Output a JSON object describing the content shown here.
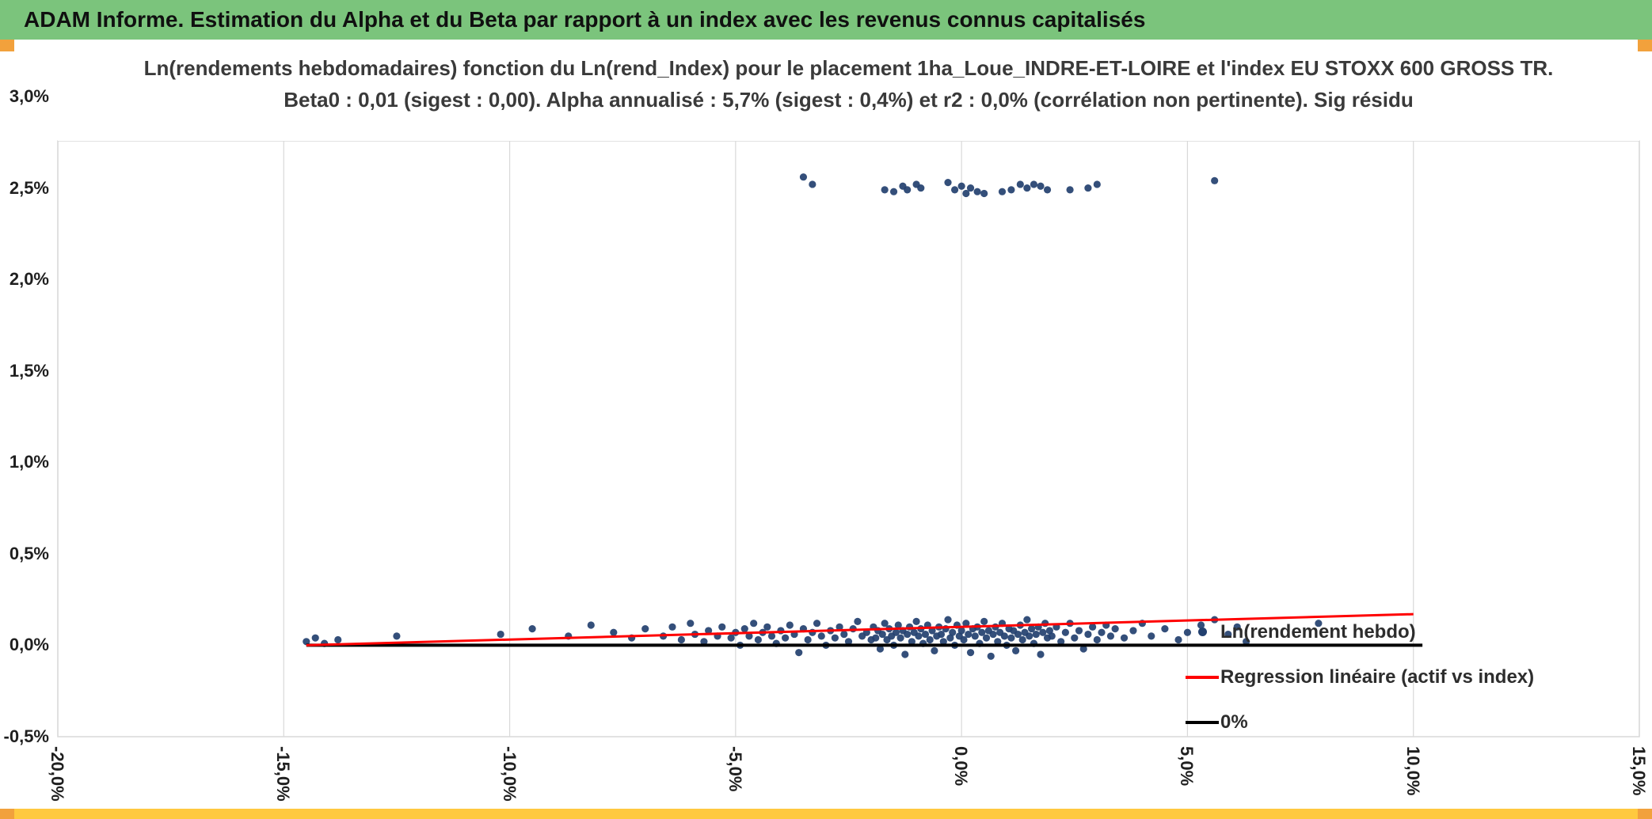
{
  "header": {
    "title": "ADAM Informe. Estimation du Alpha et du Beta par rapport à un index avec les revenus connus capitalisés",
    "bg_color": "#7BC47C"
  },
  "accents": {
    "corner_color": "#F2A13C",
    "bottom_bar_color": "#FFC93F"
  },
  "chart_data": {
    "type": "scatter",
    "title_line1": "Ln(rendements hebdomadaires) fonction du Ln(rend_Index) pour le placement 1ha_Loue_INDRE-ET-LOIRE et l'index EU STOXX 600 GROSS TR.",
    "title_line2": "Beta0 : 0,01 (sigest : 0,00). Alpha annualisé : 5,7% (sigest : 0,4%) et r2 : 0,0% (corrélation non pertinente). Sig résidu",
    "grid": true,
    "grid_color": "#D9D9D9",
    "legend_position": "inside-right",
    "x_axis": {
      "min": -20,
      "max": 15,
      "tick_step": 5,
      "tick_values": [
        -20,
        -15,
        -10,
        -5,
        0,
        5,
        10,
        15
      ],
      "tick_labels": [
        "-20,0%",
        "-15,0%",
        "-10,0%",
        "-5,0%",
        "0,0%",
        "5,0%",
        "10,0%",
        "15,0%"
      ]
    },
    "y_axis": {
      "min": -0.5,
      "max": 3.0,
      "tick_step": 0.5,
      "tick_values": [
        3.0,
        2.5,
        2.0,
        1.5,
        1.0,
        0.5,
        0.0,
        -0.5
      ],
      "tick_labels": [
        "3,0%",
        "2,5%",
        "2,0%",
        "1,5%",
        "1,0%",
        "0,5%",
        "0,0%",
        "-0,5%"
      ]
    },
    "series": [
      {
        "name": "Ln(rendement hebdo)",
        "type": "scatter",
        "color": "#23406F",
        "points": [
          [
            -14.5,
            0.02
          ],
          [
            -14.3,
            0.04
          ],
          [
            -14.1,
            0.01
          ],
          [
            -13.8,
            0.03
          ],
          [
            -12.5,
            0.05
          ],
          [
            -10.2,
            0.06
          ],
          [
            -9.5,
            0.09
          ],
          [
            -8.7,
            0.05
          ],
          [
            -8.2,
            0.11
          ],
          [
            -7.7,
            0.07
          ],
          [
            -7.3,
            0.04
          ],
          [
            -7.0,
            0.09
          ],
          [
            -6.6,
            0.05
          ],
          [
            -6.4,
            0.1
          ],
          [
            -6.2,
            0.03
          ],
          [
            -6.0,
            0.12
          ],
          [
            -5.9,
            0.06
          ],
          [
            -5.7,
            0.02
          ],
          [
            -5.6,
            0.08
          ],
          [
            -5.4,
            0.05
          ],
          [
            -5.3,
            0.1
          ],
          [
            -5.1,
            0.04
          ],
          [
            -5.0,
            0.07
          ],
          [
            -4.9,
            0.0
          ],
          [
            -4.8,
            0.09
          ],
          [
            -4.7,
            0.05
          ],
          [
            -4.6,
            0.12
          ],
          [
            -4.5,
            0.03
          ],
          [
            -4.4,
            0.07
          ],
          [
            -4.3,
            0.1
          ],
          [
            -4.2,
            0.05
          ],
          [
            -4.1,
            0.01
          ],
          [
            -4.0,
            0.08
          ],
          [
            -3.9,
            0.04
          ],
          [
            -3.8,
            0.11
          ],
          [
            -3.7,
            0.06
          ],
          [
            -3.6,
            -0.04
          ],
          [
            -3.5,
            0.09
          ],
          [
            -3.4,
            0.03
          ],
          [
            -3.3,
            0.07
          ],
          [
            -3.2,
            0.12
          ],
          [
            -3.1,
            0.05
          ],
          [
            -3.0,
            0.0
          ],
          [
            -2.9,
            0.08
          ],
          [
            -2.8,
            0.04
          ],
          [
            -2.7,
            0.1
          ],
          [
            -2.6,
            0.06
          ],
          [
            -2.5,
            0.02
          ],
          [
            -2.4,
            0.09
          ],
          [
            -2.3,
            0.13
          ],
          [
            -2.2,
            0.05
          ],
          [
            -2.1,
            0.07
          ],
          [
            -2.0,
            0.03
          ],
          [
            -1.95,
            0.1
          ],
          [
            -1.9,
            0.04
          ],
          [
            -1.85,
            0.08
          ],
          [
            -1.8,
            -0.02
          ],
          [
            -1.75,
            0.06
          ],
          [
            -1.7,
            0.12
          ],
          [
            -1.65,
            0.03
          ],
          [
            -1.6,
            0.09
          ],
          [
            -1.55,
            0.05
          ],
          [
            -1.5,
            0.0
          ],
          [
            -1.45,
            0.07
          ],
          [
            -1.4,
            0.11
          ],
          [
            -1.35,
            0.04
          ],
          [
            -1.3,
            0.08
          ],
          [
            -1.25,
            -0.05
          ],
          [
            -1.2,
            0.06
          ],
          [
            -1.15,
            0.1
          ],
          [
            -1.1,
            0.02
          ],
          [
            -1.05,
            0.07
          ],
          [
            -1.0,
            0.13
          ],
          [
            -0.95,
            0.05
          ],
          [
            -0.9,
            0.09
          ],
          [
            -0.85,
            0.01
          ],
          [
            -0.8,
            0.06
          ],
          [
            -0.75,
            0.11
          ],
          [
            -0.7,
            0.03
          ],
          [
            -0.65,
            0.08
          ],
          [
            -0.6,
            -0.03
          ],
          [
            -0.55,
            0.05
          ],
          [
            -0.5,
            0.1
          ],
          [
            -0.45,
            0.06
          ],
          [
            -0.4,
            0.02
          ],
          [
            -0.35,
            0.09
          ],
          [
            -0.3,
            0.14
          ],
          [
            -0.25,
            0.04
          ],
          [
            -0.2,
            0.07
          ],
          [
            -0.15,
            0.0
          ],
          [
            -0.1,
            0.11
          ],
          [
            -0.05,
            0.05
          ],
          [
            0.0,
            0.08
          ],
          [
            0.05,
            0.03
          ],
          [
            0.1,
            0.12
          ],
          [
            0.15,
            0.06
          ],
          [
            0.2,
            -0.04
          ],
          [
            0.25,
            0.09
          ],
          [
            0.3,
            0.05
          ],
          [
            0.35,
            0.1
          ],
          [
            0.4,
            0.01
          ],
          [
            0.45,
            0.07
          ],
          [
            0.5,
            0.13
          ],
          [
            0.55,
            0.04
          ],
          [
            0.6,
            0.08
          ],
          [
            0.65,
            -0.06
          ],
          [
            0.7,
            0.06
          ],
          [
            0.75,
            0.1
          ],
          [
            0.8,
            0.02
          ],
          [
            0.85,
            0.07
          ],
          [
            0.9,
            0.12
          ],
          [
            0.95,
            0.05
          ],
          [
            1.0,
            0.0
          ],
          [
            1.05,
            0.09
          ],
          [
            1.1,
            0.04
          ],
          [
            1.15,
            0.08
          ],
          [
            1.2,
            -0.03
          ],
          [
            1.25,
            0.06
          ],
          [
            1.3,
            0.11
          ],
          [
            1.35,
            0.03
          ],
          [
            1.4,
            0.07
          ],
          [
            1.45,
            0.14
          ],
          [
            1.5,
            0.05
          ],
          [
            1.55,
            0.09
          ],
          [
            1.6,
            0.01
          ],
          [
            1.65,
            0.06
          ],
          [
            1.7,
            0.1
          ],
          [
            1.75,
            -0.05
          ],
          [
            1.8,
            0.07
          ],
          [
            1.85,
            0.12
          ],
          [
            1.9,
            0.04
          ],
          [
            1.95,
            0.08
          ],
          [
            2.0,
            0.05
          ],
          [
            2.1,
            0.1
          ],
          [
            2.2,
            0.02
          ],
          [
            2.3,
            0.07
          ],
          [
            2.4,
            0.12
          ],
          [
            2.5,
            0.04
          ],
          [
            2.6,
            0.08
          ],
          [
            2.7,
            -0.02
          ],
          [
            2.8,
            0.06
          ],
          [
            2.9,
            0.1
          ],
          [
            3.0,
            0.03
          ],
          [
            3.1,
            0.07
          ],
          [
            3.2,
            0.11
          ],
          [
            3.3,
            0.05
          ],
          [
            3.4,
            0.09
          ],
          [
            3.6,
            0.04
          ],
          [
            3.8,
            0.08
          ],
          [
            4.0,
            0.12
          ],
          [
            4.2,
            0.05
          ],
          [
            4.5,
            0.09
          ],
          [
            4.8,
            0.03
          ],
          [
            5.0,
            0.07
          ],
          [
            5.3,
            0.11
          ],
          [
            5.6,
            0.14
          ],
          [
            5.9,
            0.06
          ],
          [
            6.1,
            0.1
          ],
          [
            6.3,
            0.02
          ],
          [
            7.9,
            0.12
          ],
          [
            -3.5,
            2.56
          ],
          [
            -3.3,
            2.52
          ],
          [
            -1.7,
            2.49
          ],
          [
            -1.5,
            2.48
          ],
          [
            -1.3,
            2.51
          ],
          [
            -1.2,
            2.49
          ],
          [
            -1.0,
            2.52
          ],
          [
            -0.9,
            2.5
          ],
          [
            -0.3,
            2.53
          ],
          [
            -0.15,
            2.49
          ],
          [
            0.0,
            2.51
          ],
          [
            0.1,
            2.47
          ],
          [
            0.2,
            2.5
          ],
          [
            0.35,
            2.48
          ],
          [
            0.5,
            2.47
          ],
          [
            0.9,
            2.48
          ],
          [
            1.1,
            2.49
          ],
          [
            1.3,
            2.52
          ],
          [
            1.45,
            2.5
          ],
          [
            1.6,
            2.52
          ],
          [
            1.75,
            2.51
          ],
          [
            1.9,
            2.49
          ],
          [
            2.4,
            2.49
          ],
          [
            2.8,
            2.5
          ],
          [
            3.0,
            2.52
          ],
          [
            5.6,
            2.54
          ]
        ]
      },
      {
        "name": "Regression linéaire (actif vs index)",
        "type": "line",
        "color": "#FF0000",
        "points": [
          [
            -14.5,
            0.0
          ],
          [
            10.0,
            0.17
          ]
        ]
      },
      {
        "name": "0%",
        "type": "line",
        "color": "#000000",
        "points": [
          [
            -14.5,
            0.0
          ],
          [
            10.2,
            0.0
          ]
        ]
      }
    ]
  }
}
